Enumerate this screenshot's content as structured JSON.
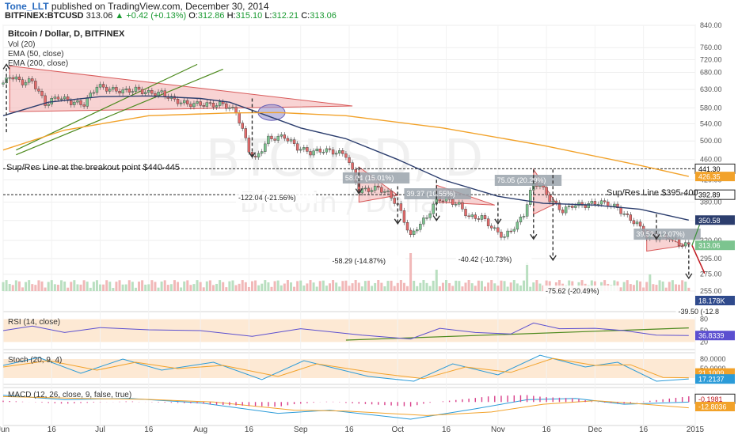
{
  "header": {
    "author": "Tone_LLT",
    "published": "published on TradingView.com, December 30, 2014",
    "symbol": "BITFINEX:BTCUSD",
    "price": "313.06",
    "change": "+0.42 (+0.13%)",
    "o_label": "O:",
    "o": "312.86",
    "h_label": "H:",
    "h": "315.10",
    "l_label": "L:",
    "l": "312.21",
    "c_label": "C:",
    "c": "313.06"
  },
  "colors": {
    "up": "#7cc48f",
    "down": "#e46b6b",
    "candle_edge": "#333333",
    "ema50": "#2c3e6e",
    "ema200": "#f2a22a",
    "triangle_fill": "#f4b6b6",
    "triangle_edge": "#d85a5a",
    "vol_up": "#b9dfc0",
    "vol_down": "#f1b8b8",
    "rsi": "#5b4fd0",
    "rsi_band": "#fde9d4",
    "stoch_k": "#2b9bd8",
    "stoch_d": "#f2a22a",
    "macd": "#2b9bd8",
    "signal": "#f2a22a",
    "hist": "#d9408a",
    "trendline": "#4d8a1e"
  },
  "main": {
    "title": "Bitcoin / Dollar, D, BITFINEX",
    "legend": [
      "Vol (20)",
      "EMA (50, close)",
      "EMA (200, close)"
    ],
    "watermark_big": "BTCUSD, D",
    "watermark_small": "Bitcoin / Dollar",
    "support_label_1": "Sup/Res Line at the breakout point $440-445",
    "support_label_2": "Sup/Res Line $395-400",
    "annotations": [
      "-122.04 (-21.56%)",
      "58.04 (15.01%)",
      "39.37 (10.55%)",
      "75.05 (20.29%)",
      "39.52 (12.07%)",
      "-58.29 (-14.87%)",
      "-40.42 (-10.73%)",
      "-75.62 (-20.49%)",
      "-39.50 (-12.8"
    ],
    "price_tags": [
      "441.30",
      "426.35",
      "392.89",
      "350.58",
      "313.06",
      "18.178K"
    ]
  },
  "chart_data": {
    "type": "candlestick",
    "title": "Bitcoin / Dollar, D, BITFINEX",
    "y_scale": "log",
    "ylim": [
      255,
      840
    ],
    "y_ticks": [
      840,
      760,
      720,
      680,
      630,
      580,
      540,
      500,
      460,
      420,
      380,
      350,
      320,
      295,
      275,
      255
    ],
    "x_ticks": [
      "Jun",
      "16",
      "Jul",
      "16",
      "Aug",
      "16",
      "Sep",
      "16",
      "Oct",
      "16",
      "Nov",
      "16",
      "Dec",
      "16",
      "2015"
    ],
    "x_range": [
      "2014-06-01",
      "2015-01-01"
    ],
    "close_path": [
      [
        "2014-06-01",
        645
      ],
      [
        "2014-06-03",
        670
      ],
      [
        "2014-06-07",
        650
      ],
      [
        "2014-06-10",
        655
      ],
      [
        "2014-06-14",
        590
      ],
      [
        "2014-06-18",
        610
      ],
      [
        "2014-06-22",
        595
      ],
      [
        "2014-06-26",
        590
      ],
      [
        "2014-06-30",
        640
      ],
      [
        "2014-07-04",
        630
      ],
      [
        "2014-07-08",
        625
      ],
      [
        "2014-07-12",
        630
      ],
      [
        "2014-07-16",
        620
      ],
      [
        "2014-07-20",
        620
      ],
      [
        "2014-07-24",
        600
      ],
      [
        "2014-07-28",
        590
      ],
      [
        "2014-08-01",
        590
      ],
      [
        "2014-08-05",
        588
      ],
      [
        "2014-08-08",
        590
      ],
      [
        "2014-08-12",
        570
      ],
      [
        "2014-08-16",
        480
      ],
      [
        "2014-08-18",
        460
      ],
      [
        "2014-08-22",
        505
      ],
      [
        "2014-08-27",
        510
      ],
      [
        "2014-08-31",
        485
      ],
      [
        "2014-09-04",
        475
      ],
      [
        "2014-09-08",
        480
      ],
      [
        "2014-09-12",
        475
      ],
      [
        "2014-09-15",
        470
      ],
      [
        "2014-09-19",
        400
      ],
      [
        "2014-09-22",
        402
      ],
      [
        "2014-09-25",
        405
      ],
      [
        "2014-09-28",
        395
      ],
      [
        "2014-10-01",
        375
      ],
      [
        "2014-10-05",
        325
      ],
      [
        "2014-10-07",
        340
      ],
      [
        "2014-10-10",
        355
      ],
      [
        "2014-10-13",
        385
      ],
      [
        "2014-10-16",
        385
      ],
      [
        "2014-10-20",
        375
      ],
      [
        "2014-10-23",
        355
      ],
      [
        "2014-10-27",
        355
      ],
      [
        "2014-10-31",
        335
      ],
      [
        "2014-11-03",
        325
      ],
      [
        "2014-11-07",
        345
      ],
      [
        "2014-11-09",
        360
      ],
      [
        "2014-11-12",
        415
      ],
      [
        "2014-11-14",
        410
      ],
      [
        "2014-11-17",
        385
      ],
      [
        "2014-11-21",
        365
      ],
      [
        "2014-11-24",
        375
      ],
      [
        "2014-11-28",
        375
      ],
      [
        "2014-12-02",
        380
      ],
      [
        "2014-12-05",
        377
      ],
      [
        "2014-12-08",
        370
      ],
      [
        "2014-12-11",
        355
      ],
      [
        "2014-12-14",
        345
      ],
      [
        "2014-12-17",
        325
      ],
      [
        "2014-12-20",
        325
      ],
      [
        "2014-12-24",
        325
      ],
      [
        "2014-12-27",
        315
      ],
      [
        "2014-12-30",
        313.06
      ]
    ],
    "ema50": [
      [
        "2014-06-01",
        560
      ],
      [
        "2014-06-15",
        595
      ],
      [
        "2014-07-01",
        610
      ],
      [
        "2014-07-16",
        612
      ],
      [
        "2014-08-01",
        605
      ],
      [
        "2014-08-10",
        595
      ],
      [
        "2014-08-20",
        565
      ],
      [
        "2014-09-01",
        530
      ],
      [
        "2014-09-15",
        505
      ],
      [
        "2014-10-01",
        460
      ],
      [
        "2014-10-15",
        420
      ],
      [
        "2014-11-01",
        390
      ],
      [
        "2014-11-15",
        378
      ],
      [
        "2014-12-01",
        375
      ],
      [
        "2014-12-15",
        368
      ],
      [
        "2014-12-30",
        350.58
      ]
    ],
    "ema200": [
      [
        "2014-06-01",
        480
      ],
      [
        "2014-06-20",
        525
      ],
      [
        "2014-07-16",
        560
      ],
      [
        "2014-08-10",
        567
      ],
      [
        "2014-08-25",
        568
      ],
      [
        "2014-09-15",
        560
      ],
      [
        "2014-10-15",
        530
      ],
      [
        "2014-11-15",
        490
      ],
      [
        "2014-12-15",
        448
      ],
      [
        "2014-12-30",
        426.35
      ]
    ],
    "volume": {
      "last": "18.178K",
      "spikes": [
        [
          "2014-10-05",
          80
        ],
        [
          "2014-10-13",
          45
        ],
        [
          "2014-11-10",
          60
        ],
        [
          "2014-12-18",
          35
        ]
      ]
    },
    "levels": [
      {
        "label": "Sup/Res Line at the breakout point $440-445",
        "price": 441.3
      },
      {
        "label": "Sup/Res Line $395-400",
        "price": 392.89
      }
    ],
    "rsi": {
      "label": "RSI (14, close)",
      "last": "36.8339",
      "values": [
        [
          "2014-06-01",
          50
        ],
        [
          "2014-06-10",
          62
        ],
        [
          "2014-06-20",
          45
        ],
        [
          "2014-07-01",
          58
        ],
        [
          "2014-07-16",
          52
        ],
        [
          "2014-08-01",
          50
        ],
        [
          "2014-08-17",
          35
        ],
        [
          "2014-09-01",
          55
        ],
        [
          "2014-09-20",
          38
        ],
        [
          "2014-10-05",
          28
        ],
        [
          "2014-10-14",
          56
        ],
        [
          "2014-10-25",
          45
        ],
        [
          "2014-11-05",
          41
        ],
        [
          "2014-11-12",
          70
        ],
        [
          "2014-11-20",
          55
        ],
        [
          "2014-12-01",
          56
        ],
        [
          "2014-12-10",
          50
        ],
        [
          "2014-12-20",
          38
        ],
        [
          "2014-12-30",
          36.8339
        ]
      ]
    },
    "stoch": {
      "label": "Stoch (20, 9, 4)",
      "k_last": "17.2137",
      "d_last": "21.1009",
      "k": [
        [
          "2014-06-01",
          60
        ],
        [
          "2014-06-12",
          85
        ],
        [
          "2014-06-25",
          35
        ],
        [
          "2014-07-08",
          80
        ],
        [
          "2014-07-20",
          45
        ],
        [
          "2014-08-05",
          70
        ],
        [
          "2014-08-20",
          15
        ],
        [
          "2014-09-02",
          75
        ],
        [
          "2014-09-22",
          25
        ],
        [
          "2014-10-06",
          10
        ],
        [
          "2014-10-18",
          65
        ],
        [
          "2014-11-01",
          30
        ],
        [
          "2014-11-14",
          92
        ],
        [
          "2014-11-28",
          55
        ],
        [
          "2014-12-08",
          70
        ],
        [
          "2014-12-20",
          10
        ],
        [
          "2014-12-30",
          17.2137
        ]
      ],
      "d": [
        [
          "2014-06-01",
          55
        ],
        [
          "2014-06-15",
          75
        ],
        [
          "2014-06-30",
          45
        ],
        [
          "2014-07-12",
          70
        ],
        [
          "2014-07-25",
          50
        ],
        [
          "2014-08-08",
          60
        ],
        [
          "2014-08-25",
          25
        ],
        [
          "2014-09-06",
          65
        ],
        [
          "2014-09-25",
          35
        ],
        [
          "2014-10-09",
          18
        ],
        [
          "2014-10-22",
          55
        ],
        [
          "2014-11-05",
          38
        ],
        [
          "2014-11-18",
          82
        ],
        [
          "2014-12-01",
          60
        ],
        [
          "2014-12-12",
          62
        ],
        [
          "2014-12-22",
          22
        ],
        [
          "2014-12-30",
          21.1009
        ]
      ]
    },
    "macd": {
      "label": "MACD (12, 26, close, 9, false, true)",
      "macd_last": "-0.1981",
      "signal_last": "-12.8036",
      "macd": [
        [
          "2014-06-01",
          15
        ],
        [
          "2014-06-20",
          5
        ],
        [
          "2014-07-10",
          8
        ],
        [
          "2014-08-01",
          -2
        ],
        [
          "2014-08-25",
          -25
        ],
        [
          "2014-09-10",
          -18
        ],
        [
          "2014-10-05",
          -38
        ],
        [
          "2014-10-25",
          -15
        ],
        [
          "2014-11-10",
          5
        ],
        [
          "2014-11-25",
          8
        ],
        [
          "2014-12-10",
          -5
        ],
        [
          "2014-12-30",
          -0.1981
        ]
      ],
      "signal": [
        [
          "2014-06-01",
          12
        ],
        [
          "2014-06-25",
          8
        ],
        [
          "2014-07-15",
          6
        ],
        [
          "2014-08-05",
          0
        ],
        [
          "2014-08-30",
          -18
        ],
        [
          "2014-09-15",
          -20
        ],
        [
          "2014-10-10",
          -30
        ],
        [
          "2014-10-30",
          -22
        ],
        [
          "2014-11-15",
          -5
        ],
        [
          "2014-12-01",
          3
        ],
        [
          "2014-12-15",
          -4
        ],
        [
          "2014-12-30",
          -12.8036
        ]
      ]
    }
  },
  "axes": {
    "rsi_ticks": [
      "80",
      "50",
      "20"
    ],
    "stoch_ticks": [
      "80.0000",
      "50.0000"
    ]
  }
}
